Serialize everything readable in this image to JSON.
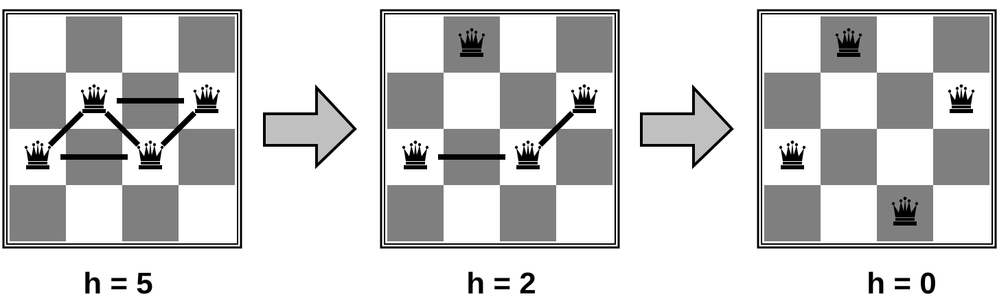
{
  "colors": {
    "dark_square": "#7f7f7f",
    "light_square": "#ffffff",
    "arrow_fill": "#c0c0c0",
    "ink": "#000000"
  },
  "icons": {
    "piece": "queen-icon",
    "transition": "right-arrow-icon"
  },
  "board_size": 4,
  "boards": [
    {
      "caption": "h = 5",
      "queens": [
        {
          "col": 1,
          "row": 1
        },
        {
          "col": 3,
          "row": 1
        },
        {
          "col": 0,
          "row": 2
        },
        {
          "col": 2,
          "row": 2
        }
      ],
      "attacks": [
        [
          0,
          1
        ],
        [
          0,
          2
        ],
        [
          0,
          3
        ],
        [
          1,
          3
        ],
        [
          2,
          3
        ]
      ]
    },
    {
      "caption": "h = 2",
      "queens": [
        {
          "col": 1,
          "row": 0
        },
        {
          "col": 3,
          "row": 1
        },
        {
          "col": 0,
          "row": 2
        },
        {
          "col": 2,
          "row": 2
        }
      ],
      "attacks": [
        [
          2,
          3
        ],
        [
          1,
          3
        ]
      ]
    },
    {
      "caption": "h = 0",
      "queens": [
        {
          "col": 1,
          "row": 0
        },
        {
          "col": 3,
          "row": 1
        },
        {
          "col": 0,
          "row": 2
        },
        {
          "col": 2,
          "row": 3
        }
      ],
      "attacks": []
    }
  ]
}
